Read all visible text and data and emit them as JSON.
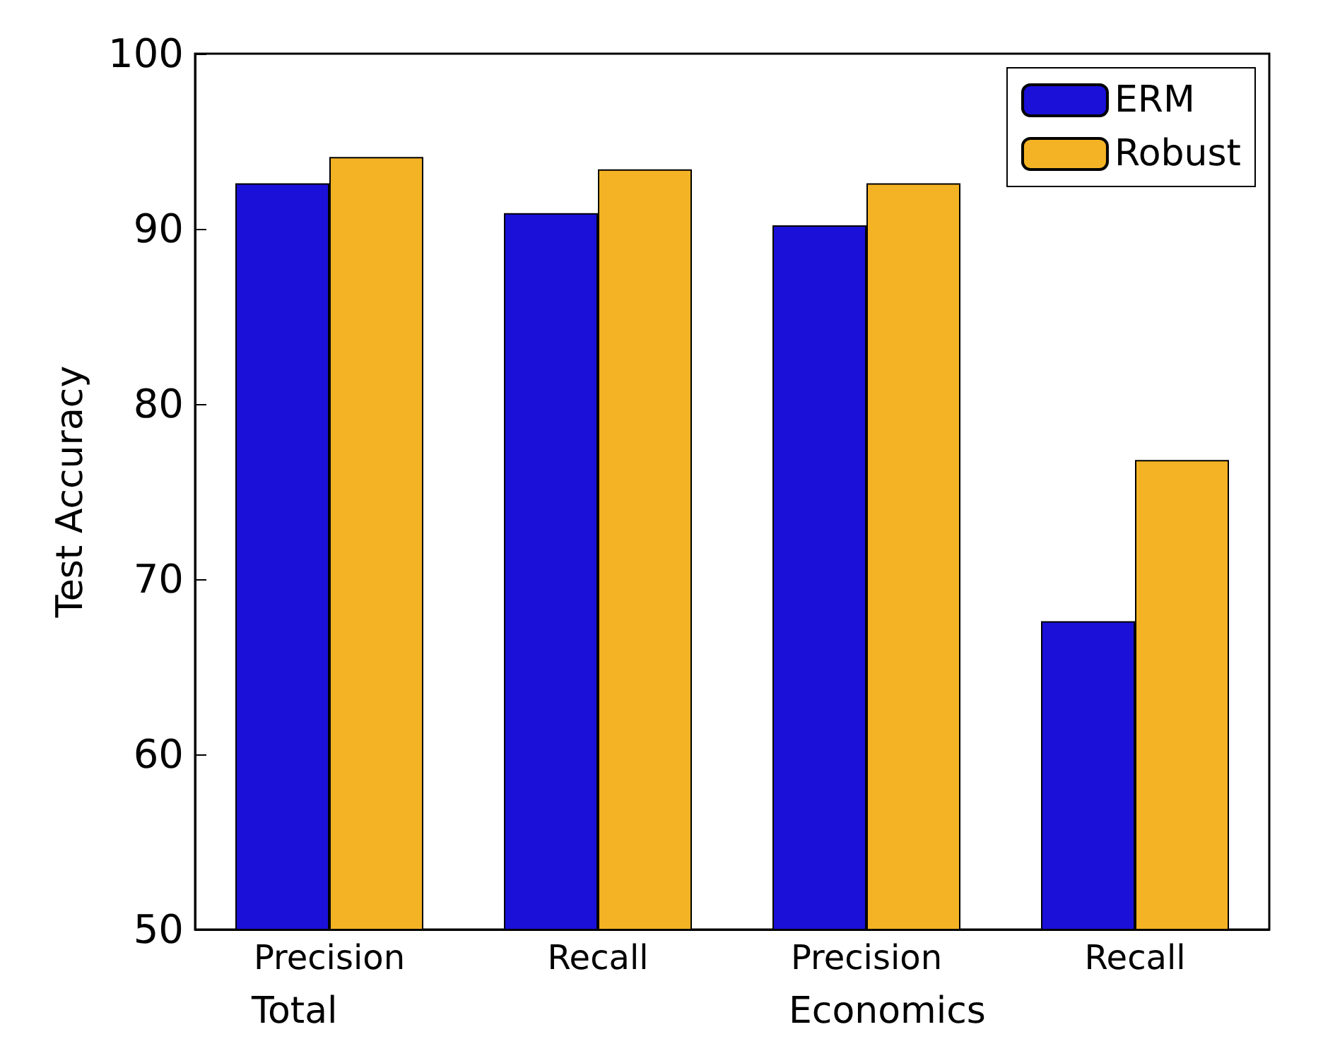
{
  "chart_data": {
    "type": "bar",
    "ylabel": "Test Accuracy",
    "categories": [
      "Precision",
      "Recall",
      "Precision",
      "Recall"
    ],
    "series": [
      {
        "name": "ERM",
        "color": "#1a10d8",
        "values": [
          92.6,
          90.9,
          90.2,
          67.6
        ]
      },
      {
        "name": "Robust",
        "color": "#f4b324",
        "values": [
          94.1,
          93.4,
          92.6,
          76.8
        ]
      }
    ],
    "ylim": [
      50,
      100
    ],
    "yticks": [
      50,
      60,
      70,
      80,
      90,
      100
    ],
    "grid": false,
    "legend": "top right",
    "annotations": [
      "Total",
      "Economics"
    ]
  }
}
